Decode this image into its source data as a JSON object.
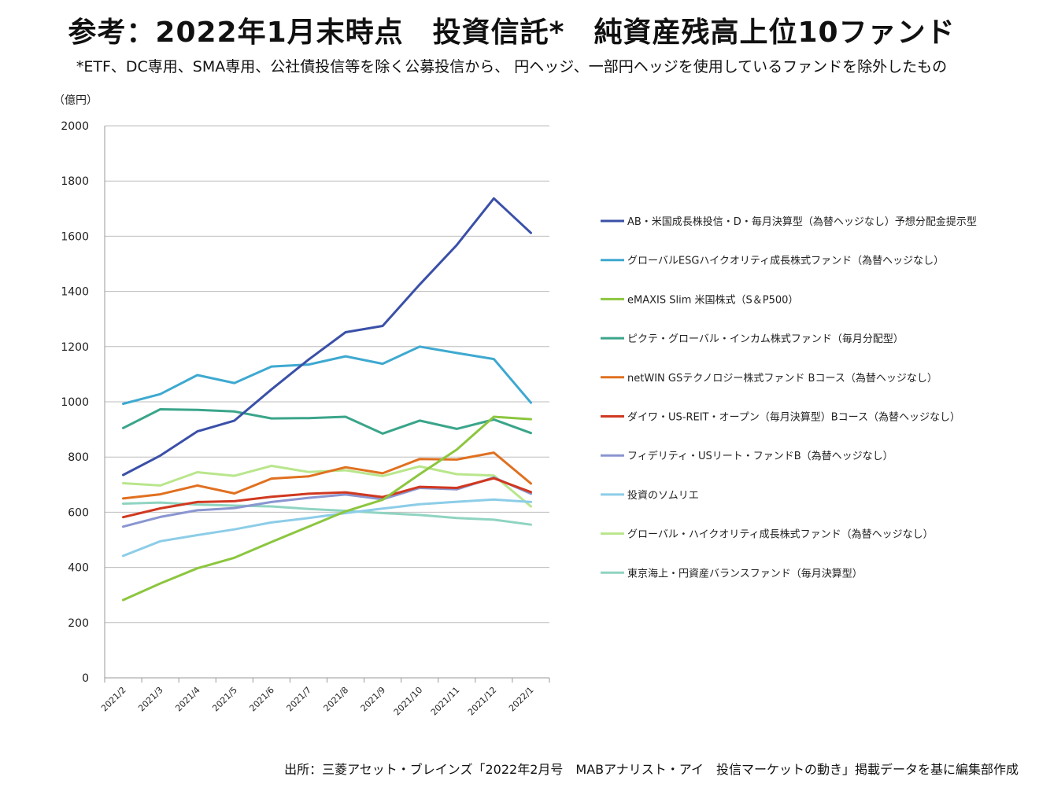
{
  "title": "参考：2022年1月末時点　投資信託*　純資産残高上位10ファンド",
  "subtitle": "*ETF、DC専用、SMA専用、公社債投信等を除く公募投信から、 円ヘッジ、一部円ヘッジを使用しているファンドを除外したもの",
  "source": "出所：三菱アセット・ブレインズ「2022年2月号　MABアナリスト・アイ　投信マーケットの動き」掲載データを基に編集部作成",
  "chart_data": {
    "type": "line",
    "ylabel": "（億円）",
    "xlabel": "",
    "ylim": [
      0,
      2000
    ],
    "yticks": [
      0,
      200,
      400,
      600,
      800,
      1000,
      1200,
      1400,
      1600,
      1800,
      2000
    ],
    "grid": "horizontal",
    "legend_position": "right",
    "categories": [
      "2021/2",
      "2021/3",
      "2021/4",
      "2021/5",
      "2021/6",
      "2021/7",
      "2021/8",
      "2021/9",
      "2021/10",
      "2021/11",
      "2021/12",
      "2022/1"
    ],
    "series": [
      {
        "name": "AB・米国成長株投信・D・毎月決算型（為替ヘッジなし）予想分配金提示型",
        "color": "#3a50a8",
        "values": [
          735,
          805,
          893,
          932,
          1045,
          1153,
          1252,
          1275,
          1425,
          1568,
          1737,
          1612
        ]
      },
      {
        "name": "グローバルESGハイクオリティ成長株式ファンド（為替ヘッジなし）",
        "color": "#3ea9d0",
        "values": [
          993,
          1028,
          1097,
          1068,
          1128,
          1135,
          1165,
          1138,
          1200,
          1177,
          1155,
          997
        ]
      },
      {
        "name": "eMAXIS Slim 米国株式（S＆P500）",
        "color": "#8cc63f",
        "values": [
          282,
          342,
          397,
          435,
          492,
          548,
          603,
          645,
          738,
          827,
          946,
          937
        ]
      },
      {
        "name": "ピクテ・グローバル・インカム株式ファンド（毎月分配型）",
        "color": "#3aa58a",
        "values": [
          905,
          973,
          971,
          965,
          940,
          941,
          946,
          885,
          932,
          902,
          936,
          887
        ]
      },
      {
        "name": "netWIN GSテクノロジー株式ファンド Bコース（為替ヘッジなし）",
        "color": "#e07020",
        "values": [
          650,
          665,
          697,
          668,
          722,
          730,
          763,
          741,
          793,
          791,
          816,
          704
        ]
      },
      {
        "name": "ダイワ・US-REIT・オープン（毎月決算型）Bコース（為替ヘッジなし）",
        "color": "#d03820",
        "values": [
          582,
          614,
          637,
          640,
          656,
          667,
          672,
          655,
          692,
          688,
          723,
          673
        ]
      },
      {
        "name": "フィデリティ・USリート・ファンドB（為替ヘッジなし）",
        "color": "#8a96d0",
        "values": [
          548,
          583,
          607,
          615,
          637,
          652,
          664,
          647,
          688,
          683,
          726,
          667
        ]
      },
      {
        "name": "投資のソムリエ",
        "color": "#8ccde8",
        "values": [
          442,
          495,
          517,
          538,
          563,
          579,
          597,
          613,
          629,
          638,
          646,
          637
        ]
      },
      {
        "name": "グローバル・ハイクオリティ成長株式ファンド（為替ヘッジなし）",
        "color": "#b9e68c",
        "values": [
          705,
          697,
          745,
          732,
          768,
          746,
          752,
          731,
          766,
          738,
          733,
          621
        ]
      },
      {
        "name": "東京海上・円資産バランスファンド（毎月決算型）",
        "color": "#8fd4c1",
        "values": [
          631,
          635,
          628,
          624,
          621,
          612,
          605,
          597,
          590,
          579,
          573,
          555
        ]
      }
    ]
  }
}
